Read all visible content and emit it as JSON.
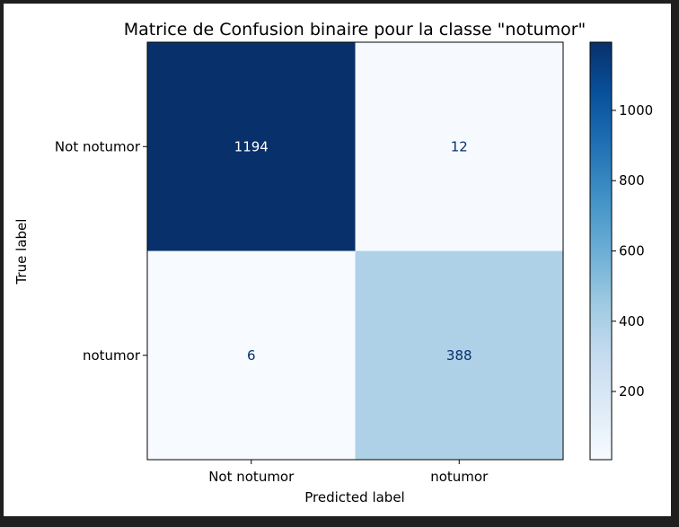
{
  "chart_data": {
    "type": "heatmap",
    "title": "Matrice de Confusion binaire pour la classe \"notumor\"",
    "xlabel": "Predicted label",
    "ylabel": "True label",
    "x_categories": [
      "Not notumor",
      "notumor"
    ],
    "y_categories": [
      "Not notumor",
      "notumor"
    ],
    "values": [
      [
        1194,
        12
      ],
      [
        6,
        388
      ]
    ],
    "colormap": "Blues",
    "colorbar": {
      "min": 6,
      "max": 1194,
      "ticks": [
        200,
        400,
        600,
        800,
        1000
      ],
      "tick_labels": [
        "200",
        "400",
        "600",
        "800",
        "1000"
      ]
    },
    "colors": {
      "cell_dark": "#08306b",
      "cell_light": "#f7fbff",
      "cell_mid": "#aed1e7",
      "text_on_dark": "#ffffff",
      "text_on_light": "#08306b"
    }
  }
}
